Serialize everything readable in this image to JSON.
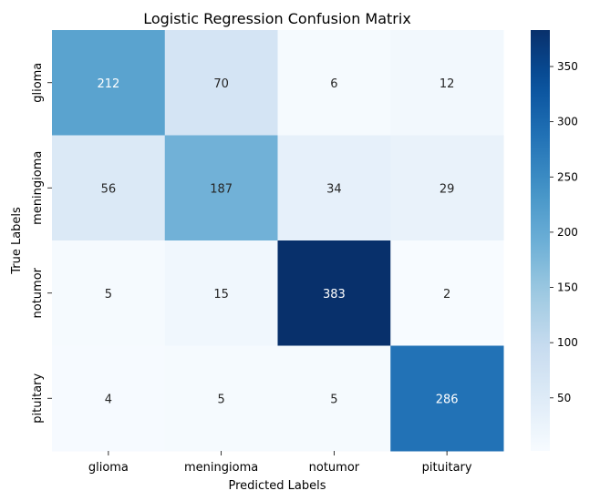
{
  "chart_data": {
    "type": "heatmap",
    "title": "Logistic Regression Confusion Matrix",
    "xlabel": "Predicted Labels",
    "ylabel": "True Labels",
    "x_categories": [
      "glioma",
      "meningioma",
      "notumor",
      "pituitary"
    ],
    "y_categories": [
      "glioma",
      "meningioma",
      "notumor",
      "pituitary"
    ],
    "values": [
      [
        212,
        70,
        6,
        12
      ],
      [
        56,
        187,
        34,
        29
      ],
      [
        5,
        15,
        383,
        2
      ],
      [
        4,
        5,
        5,
        286
      ]
    ],
    "colormap": "Blues",
    "colorbar": {
      "min": 2,
      "max": 383,
      "ticks": [
        50,
        100,
        150,
        200,
        250,
        300,
        350
      ]
    }
  }
}
